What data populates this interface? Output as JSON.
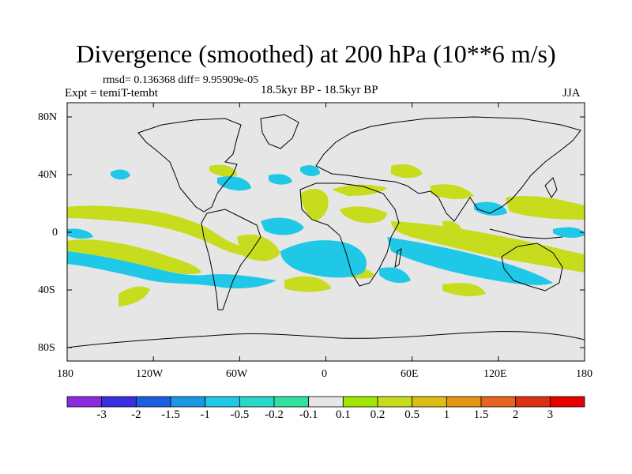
{
  "map": {
    "title": "Divergence (smoothed) at 200 hPa (10**6 m/s)",
    "stats": "rmsd= 0.136368 diff= 9.95909e-05",
    "experiment": "Expt = temiT-tembt",
    "period": "18.5kyr BP - 18.5kyr BP",
    "season": "JJA",
    "projection": "cylindrical equidistant",
    "lat_ticks": [
      "80N",
      "40N",
      "0",
      "40S",
      "80S"
    ],
    "lon_ticks": [
      "180",
      "120W",
      "60W",
      "0",
      "60E",
      "120E",
      "180"
    ]
  },
  "colorbar": {
    "labels": [
      "-3",
      "-2",
      "-1.5",
      "-1",
      "-0.5",
      "-0.2",
      "-0.1",
      "0.1",
      "0.2",
      "0.5",
      "1",
      "1.5",
      "2",
      "3"
    ],
    "colors": [
      "#8a2be2",
      "#3b2ee0",
      "#1a5fe0",
      "#1e96e6",
      "#1ec8e6",
      "#28d8c8",
      "#32e0a0",
      "#e6e6e6",
      "#a0e600",
      "#c8dc1e",
      "#dcbe14",
      "#e69614",
      "#e6641e",
      "#dc3214",
      "#e60000"
    ],
    "map_colors": {
      "neutral": "#e6e6e6",
      "pos_small": "#a0e600",
      "pos_mid": "#c8dc1e",
      "pos_large": "#dcbe14",
      "neg_small": "#32e0a0",
      "neg_mid": "#28d8c8",
      "neg_large": "#1ec8e6",
      "coastline": "#000000"
    }
  }
}
